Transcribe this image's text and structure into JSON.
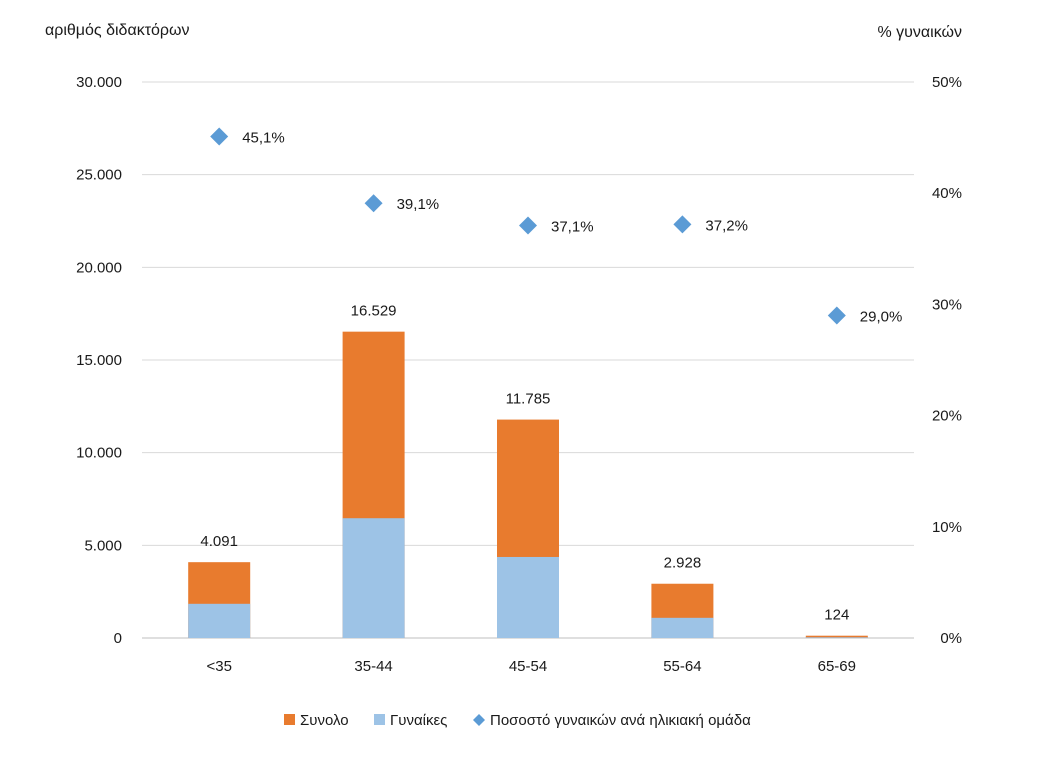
{
  "chart_data": {
    "type": "bar",
    "stacked": true,
    "categories": [
      "<35",
      "35-44",
      "45-54",
      "55-64",
      "65-69"
    ],
    "series": [
      {
        "name": "Συνολο",
        "values": [
          4091,
          16529,
          11785,
          2928,
          124
        ],
        "color": "#E87B2E",
        "data_labels": [
          "4.091",
          "16.529",
          "11.785",
          "2.928",
          "124"
        ]
      },
      {
        "name": "Γυναίκες",
        "values": [
          1845,
          6463,
          4372,
          1089,
          36
        ],
        "color": "#9DC3E6"
      },
      {
        "name": "Ποσοστό γυναικών ανά ηλικιακή ομάδα",
        "type": "scatter",
        "axis": "right",
        "values": [
          45.1,
          39.1,
          37.1,
          37.2,
          29.0
        ],
        "color": "#5B9BD5",
        "data_labels": [
          "45,1%",
          "39,1%",
          "37,1%",
          "37,2%",
          "29,0%"
        ]
      }
    ],
    "ylabel": "αριθμός διδακτόρων",
    "y2label": "% γυναικών",
    "ylim": [
      0,
      30000
    ],
    "y2lim": [
      0,
      50
    ],
    "yticks": [
      0,
      5000,
      10000,
      15000,
      20000,
      25000,
      30000
    ],
    "ytick_labels": [
      "0",
      "5.000",
      "10.000",
      "15.000",
      "20.000",
      "25.000",
      "30.000"
    ],
    "y2ticks": [
      0,
      10,
      20,
      30,
      40,
      50
    ],
    "y2tick_labels": [
      "0%",
      "10%",
      "20%",
      "30%",
      "40%",
      "50%"
    ],
    "grid": true,
    "legend": "bottom"
  }
}
